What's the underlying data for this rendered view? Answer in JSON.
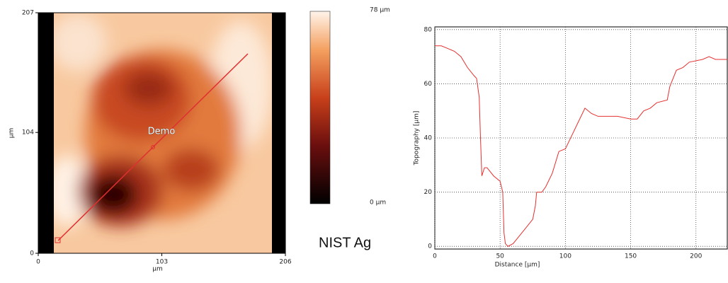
{
  "caption": "NIST Ag",
  "chart_data": [
    {
      "type": "image",
      "xlabel": "µm",
      "ylabel": "µm",
      "xlim": [
        0,
        206
      ],
      "ylim": [
        0,
        207
      ],
      "xticks": [
        0,
        103,
        206
      ],
      "yticks": [
        0,
        104,
        207
      ],
      "annotation": "Demo",
      "colorbar": {
        "lim": [
          0,
          78
        ],
        "ticks": [
          {
            "value": 78,
            "label": "78 µm"
          },
          {
            "value": 0,
            "label": "0 µm"
          }
        ]
      }
    },
    {
      "type": "line",
      "xlabel": "Distance [µm]",
      "ylabel": "Topography [µm]",
      "color": "#e53030",
      "grid": true,
      "xlim": [
        0,
        224
      ],
      "ylim": [
        -1,
        81
      ],
      "xticks": [
        0,
        50,
        100,
        150,
        200
      ],
      "yticks": [
        0,
        20,
        40,
        60,
        80
      ],
      "x": [
        0,
        5,
        10,
        15,
        20,
        25,
        30,
        32,
        34,
        35,
        36,
        38,
        40,
        45,
        50,
        52,
        53,
        54,
        56,
        60,
        65,
        70,
        75,
        77,
        78,
        82,
        85,
        90,
        95,
        100,
        105,
        110,
        115,
        120,
        125,
        130,
        140,
        150,
        155,
        160,
        165,
        170,
        178,
        180,
        185,
        190,
        195,
        205,
        210,
        215,
        224
      ],
      "values": [
        74,
        74,
        73,
        72,
        70,
        66,
        63,
        62,
        55,
        40,
        26,
        29,
        29,
        26,
        24,
        20,
        5,
        1,
        0,
        1,
        4,
        7,
        10,
        15,
        20,
        20,
        22,
        27,
        35,
        36,
        41,
        46,
        51,
        49,
        48,
        48,
        48,
        47,
        47,
        50,
        51,
        53,
        54,
        59,
        65,
        66,
        68,
        69,
        70,
        69,
        69
      ]
    }
  ]
}
